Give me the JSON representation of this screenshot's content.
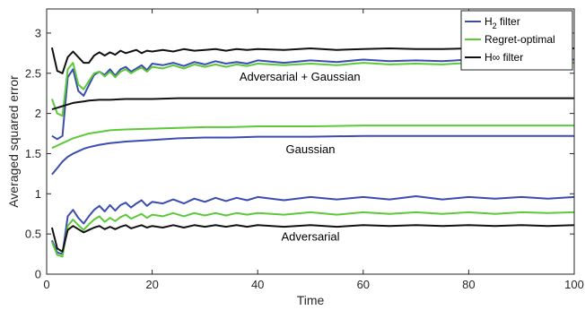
{
  "chart_data": {
    "type": "line",
    "title": "",
    "xlabel": "Time",
    "ylabel": "Averaged squared error",
    "xlim": [
      0,
      100
    ],
    "ylim": [
      0,
      3.3
    ],
    "xticks": [
      0,
      20,
      40,
      60,
      80,
      100
    ],
    "yticks": [
      0,
      0.5,
      1,
      1.5,
      2,
      2.5,
      3
    ],
    "grid": false,
    "legend": {
      "placement": "top-right",
      "entries": [
        {
          "main": "H",
          "sub": "2",
          "rest": " filter"
        },
        {
          "main": "Regret-optimal",
          "sub": "",
          "rest": ""
        },
        {
          "main": "H∞ filter",
          "sub": "",
          "rest": ""
        }
      ]
    },
    "annotations": [
      {
        "text": "Adversarial + Gaussian",
        "x": 48,
        "y": 2.45
      },
      {
        "text": "Gaussian",
        "x": 50,
        "y": 1.55
      },
      {
        "text": "Adversarial",
        "x": 50,
        "y": 0.46
      }
    ],
    "colors": {
      "h2": "#3b4cb0",
      "regret": "#5cc83a",
      "hinf": "#111111"
    },
    "series": [
      {
        "group": "Adversarial + Gaussian",
        "legend": 0,
        "color_key": "h2",
        "x": [
          1,
          2,
          3,
          4,
          5,
          6,
          7,
          8,
          9,
          10,
          11,
          12,
          13,
          14,
          15,
          16,
          17,
          18,
          19,
          20,
          22,
          24,
          26,
          28,
          30,
          32,
          34,
          36,
          38,
          40,
          45,
          50,
          55,
          60,
          65,
          70,
          75,
          80,
          85,
          90,
          95,
          100
        ],
        "y": [
          1.72,
          1.68,
          1.72,
          2.45,
          2.55,
          2.28,
          2.22,
          2.35,
          2.48,
          2.52,
          2.48,
          2.55,
          2.47,
          2.55,
          2.58,
          2.52,
          2.56,
          2.6,
          2.54,
          2.62,
          2.6,
          2.63,
          2.59,
          2.64,
          2.61,
          2.65,
          2.62,
          2.64,
          2.62,
          2.66,
          2.63,
          2.66,
          2.64,
          2.67,
          2.65,
          2.66,
          2.65,
          2.67,
          2.66,
          2.66,
          2.67,
          2.67
        ]
      },
      {
        "group": "Adversarial + Gaussian",
        "legend": 1,
        "color_key": "regret",
        "x": [
          1,
          2,
          3,
          4,
          5,
          6,
          7,
          8,
          9,
          10,
          11,
          12,
          13,
          14,
          15,
          16,
          17,
          18,
          19,
          20,
          22,
          24,
          26,
          28,
          30,
          32,
          34,
          36,
          38,
          40,
          45,
          50,
          55,
          60,
          65,
          70,
          75,
          80,
          85,
          90,
          95,
          100
        ],
        "y": [
          2.18,
          2.0,
          1.97,
          2.55,
          2.63,
          2.36,
          2.3,
          2.4,
          2.5,
          2.52,
          2.46,
          2.52,
          2.45,
          2.52,
          2.55,
          2.5,
          2.54,
          2.57,
          2.52,
          2.58,
          2.56,
          2.6,
          2.56,
          2.61,
          2.58,
          2.61,
          2.58,
          2.61,
          2.59,
          2.62,
          2.6,
          2.62,
          2.6,
          2.63,
          2.61,
          2.62,
          2.61,
          2.63,
          2.62,
          2.62,
          2.63,
          2.63
        ]
      },
      {
        "group": "Adversarial + Gaussian",
        "legend": 2,
        "color_key": "hinf",
        "x": [
          1,
          2,
          3,
          4,
          5,
          6,
          7,
          8,
          9,
          10,
          11,
          12,
          13,
          14,
          15,
          16,
          17,
          18,
          19,
          20,
          22,
          24,
          26,
          28,
          30,
          32,
          34,
          36,
          38,
          40,
          45,
          50,
          55,
          60,
          65,
          70,
          75,
          80,
          85,
          90,
          95,
          100
        ],
        "y": [
          2.82,
          2.53,
          2.5,
          2.7,
          2.77,
          2.7,
          2.63,
          2.63,
          2.72,
          2.76,
          2.72,
          2.76,
          2.73,
          2.78,
          2.75,
          2.77,
          2.79,
          2.75,
          2.78,
          2.77,
          2.79,
          2.77,
          2.8,
          2.78,
          2.79,
          2.8,
          2.78,
          2.8,
          2.79,
          2.8,
          2.79,
          2.81,
          2.79,
          2.8,
          2.81,
          2.8,
          2.8,
          2.81,
          2.8,
          2.81,
          2.81,
          2.81
        ]
      },
      {
        "group": "Gaussian",
        "legend": 0,
        "color_key": "h2",
        "x": [
          1,
          2,
          3,
          4,
          5,
          6,
          7,
          8,
          10,
          12,
          15,
          20,
          25,
          30,
          35,
          40,
          50,
          60,
          70,
          80,
          90,
          100
        ],
        "y": [
          1.24,
          1.32,
          1.4,
          1.46,
          1.5,
          1.53,
          1.56,
          1.58,
          1.61,
          1.63,
          1.65,
          1.67,
          1.69,
          1.7,
          1.7,
          1.71,
          1.71,
          1.72,
          1.72,
          1.72,
          1.72,
          1.72
        ]
      },
      {
        "group": "Gaussian",
        "legend": 1,
        "color_key": "regret",
        "x": [
          1,
          2,
          3,
          4,
          5,
          6,
          7,
          8,
          10,
          12,
          15,
          20,
          25,
          30,
          35,
          40,
          50,
          60,
          70,
          80,
          90,
          100
        ],
        "y": [
          1.57,
          1.6,
          1.63,
          1.66,
          1.69,
          1.71,
          1.73,
          1.75,
          1.77,
          1.79,
          1.8,
          1.81,
          1.82,
          1.83,
          1.83,
          1.84,
          1.84,
          1.85,
          1.85,
          1.85,
          1.85,
          1.85
        ]
      },
      {
        "group": "Gaussian",
        "legend": 2,
        "color_key": "hinf",
        "x": [
          1,
          2,
          3,
          4,
          5,
          6,
          7,
          8,
          10,
          12,
          15,
          20,
          25,
          30,
          35,
          40,
          50,
          60,
          70,
          80,
          90,
          100
        ],
        "y": [
          2.05,
          2.07,
          2.09,
          2.11,
          2.13,
          2.14,
          2.15,
          2.16,
          2.17,
          2.17,
          2.18,
          2.18,
          2.19,
          2.19,
          2.19,
          2.19,
          2.19,
          2.19,
          2.19,
          2.19,
          2.19,
          2.19
        ]
      },
      {
        "group": "Adversarial",
        "legend": 0,
        "color_key": "h2",
        "x": [
          1,
          2,
          3,
          4,
          5,
          6,
          7,
          8,
          9,
          10,
          11,
          12,
          13,
          14,
          15,
          16,
          17,
          18,
          19,
          20,
          22,
          24,
          26,
          28,
          30,
          32,
          34,
          36,
          38,
          40,
          45,
          50,
          55,
          60,
          65,
          70,
          75,
          80,
          85,
          90,
          95,
          100
        ],
        "y": [
          0.42,
          0.27,
          0.25,
          0.72,
          0.8,
          0.7,
          0.63,
          0.72,
          0.8,
          0.85,
          0.78,
          0.86,
          0.79,
          0.86,
          0.89,
          0.83,
          0.88,
          0.92,
          0.85,
          0.9,
          0.88,
          0.93,
          0.88,
          0.94,
          0.9,
          0.95,
          0.91,
          0.95,
          0.92,
          0.96,
          0.92,
          0.96,
          0.93,
          0.96,
          0.93,
          0.97,
          0.93,
          0.96,
          0.94,
          0.96,
          0.94,
          0.96
        ]
      },
      {
        "group": "Adversarial",
        "legend": 1,
        "color_key": "regret",
        "x": [
          1,
          2,
          3,
          4,
          5,
          6,
          7,
          8,
          9,
          10,
          11,
          12,
          13,
          14,
          15,
          16,
          17,
          18,
          19,
          20,
          22,
          24,
          26,
          28,
          30,
          32,
          34,
          36,
          38,
          40,
          45,
          50,
          55,
          60,
          65,
          70,
          75,
          80,
          85,
          90,
          95,
          100
        ],
        "y": [
          0.4,
          0.24,
          0.22,
          0.6,
          0.68,
          0.61,
          0.55,
          0.62,
          0.68,
          0.72,
          0.65,
          0.7,
          0.66,
          0.71,
          0.74,
          0.69,
          0.72,
          0.75,
          0.7,
          0.74,
          0.72,
          0.76,
          0.72,
          0.76,
          0.73,
          0.76,
          0.73,
          0.76,
          0.74,
          0.76,
          0.74,
          0.77,
          0.74,
          0.77,
          0.75,
          0.77,
          0.75,
          0.77,
          0.75,
          0.77,
          0.76,
          0.77
        ]
      },
      {
        "group": "Adversarial",
        "legend": 2,
        "color_key": "hinf",
        "x": [
          1,
          2,
          3,
          4,
          5,
          6,
          7,
          8,
          9,
          10,
          11,
          12,
          13,
          14,
          15,
          16,
          17,
          18,
          19,
          20,
          22,
          24,
          26,
          28,
          30,
          32,
          34,
          36,
          38,
          40,
          45,
          50,
          55,
          60,
          65,
          70,
          75,
          80,
          85,
          90,
          95,
          100
        ],
        "y": [
          0.58,
          0.32,
          0.28,
          0.55,
          0.6,
          0.56,
          0.52,
          0.55,
          0.58,
          0.6,
          0.56,
          0.59,
          0.56,
          0.59,
          0.61,
          0.57,
          0.59,
          0.61,
          0.58,
          0.6,
          0.58,
          0.61,
          0.58,
          0.61,
          0.59,
          0.61,
          0.59,
          0.61,
          0.59,
          0.61,
          0.59,
          0.61,
          0.59,
          0.61,
          0.6,
          0.61,
          0.6,
          0.61,
          0.6,
          0.61,
          0.6,
          0.61
        ]
      }
    ]
  }
}
